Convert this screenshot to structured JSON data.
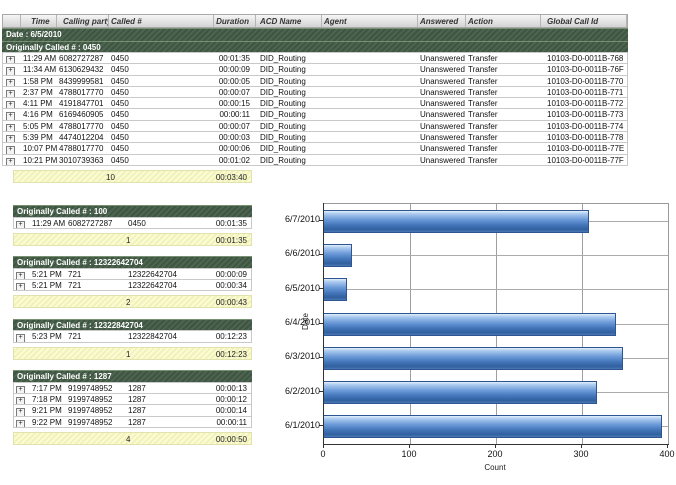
{
  "report": {
    "columns": [
      "Time",
      "Calling party #",
      "Called #",
      "Duration",
      "ACD Name",
      "Agent",
      "Answered",
      "Action",
      "Global Call Id"
    ],
    "date_band": "Date : 6/5/2010",
    "expand_glyph": "+",
    "main_group": {
      "title": "Originally Called # : 0450",
      "rows": [
        {
          "time": "11:29 AM",
          "calling": "6082727287",
          "called": "0450",
          "duration": "00:01:35",
          "acd": "DID_Routing",
          "agent": "",
          "answered": "Unanswered",
          "action": "Transfer",
          "global_id": "10103-D0-0011B-768"
        },
        {
          "time": "11:34 AM",
          "calling": "6130629432",
          "called": "0450",
          "duration": "00:00:09",
          "acd": "DID_Routing",
          "agent": "",
          "answered": "Unanswered",
          "action": "Transfer",
          "global_id": "10103-D0-0011B-76F"
        },
        {
          "time": "1:58 PM",
          "calling": "8439999581",
          "called": "0450",
          "duration": "00:00:05",
          "acd": "DID_Routing",
          "agent": "",
          "answered": "Unanswered",
          "action": "Transfer",
          "global_id": "10103-D0-0011B-770"
        },
        {
          "time": "2:37 PM",
          "calling": "4788017770",
          "called": "0450",
          "duration": "00:00:07",
          "acd": "DID_Routing",
          "agent": "",
          "answered": "Unanswered",
          "action": "Transfer",
          "global_id": "10103-D0-0011B-771"
        },
        {
          "time": "4:11 PM",
          "calling": "4191847701",
          "called": "0450",
          "duration": "00:00:15",
          "acd": "DID_Routing",
          "agent": "",
          "answered": "Unanswered",
          "action": "Transfer",
          "global_id": "10103-D0-0011B-772"
        },
        {
          "time": "4:16 PM",
          "calling": "6169460905",
          "called": "0450",
          "duration": "00:00:11",
          "acd": "DID_Routing",
          "agent": "",
          "answered": "Unanswered",
          "action": "Transfer",
          "global_id": "10103-D0-0011B-773"
        },
        {
          "time": "5:05 PM",
          "calling": "4788017770",
          "called": "0450",
          "duration": "00:00:07",
          "acd": "DID_Routing",
          "agent": "",
          "answered": "Unanswered",
          "action": "Transfer",
          "global_id": "10103-D0-0011B-774"
        },
        {
          "time": "5:39 PM",
          "calling": "4474012204",
          "called": "0450",
          "duration": "00:00:03",
          "acd": "DID_Routing",
          "agent": "",
          "answered": "Unanswered",
          "action": "Transfer",
          "global_id": "10103-D0-0011B-778"
        },
        {
          "time": "10:07 PM",
          "calling": "4788017770",
          "called": "0450",
          "duration": "00:00:06",
          "acd": "DID_Routing",
          "agent": "",
          "answered": "Unanswered",
          "action": "Transfer",
          "global_id": "10103-D0-0011B-77E"
        },
        {
          "time": "10:21 PM",
          "calling": "3010739363",
          "called": "0450",
          "duration": "00:01:02",
          "acd": "DID_Routing",
          "agent": "",
          "answered": "Unanswered",
          "action": "Transfer",
          "global_id": "10103-D0-0011B-77F"
        }
      ],
      "summary": {
        "count": "10",
        "duration": "00:03:40"
      }
    },
    "groups": [
      {
        "title": "Originally Called # : 100",
        "rows": [
          {
            "time": "11:29 AM",
            "calling": "6082727287",
            "called": "0450",
            "duration": "00:01:35"
          }
        ],
        "summary": {
          "count": "1",
          "duration": "00:01:35"
        }
      },
      {
        "title": "Originally Called # : 12322642704",
        "rows": [
          {
            "time": "5:21 PM",
            "calling": "721",
            "called": "12322642704",
            "duration": "00:00:09"
          },
          {
            "time": "5:21 PM",
            "calling": "721",
            "called": "12322642704",
            "duration": "00:00:34"
          }
        ],
        "summary": {
          "count": "2",
          "duration": "00:00:43"
        }
      },
      {
        "title": "Originally Called # : 12322842704",
        "rows": [
          {
            "time": "5:23 PM",
            "calling": "721",
            "called": "12322842704",
            "duration": "00:12:23"
          }
        ],
        "summary": {
          "count": "1",
          "duration": "00:12:23"
        }
      },
      {
        "title": "Originally Called # : 1287",
        "rows": [
          {
            "time": "7:17 PM",
            "calling": "9199748952",
            "called": "1287",
            "duration": "00:00:13"
          },
          {
            "time": "7:18 PM",
            "calling": "9199748952",
            "called": "1287",
            "duration": "00:00:12"
          },
          {
            "time": "9:21 PM",
            "calling": "9199748952",
            "called": "1287",
            "duration": "00:00:14"
          },
          {
            "time": "9:22 PM",
            "calling": "9199748952",
            "called": "1287",
            "duration": "00:00:11"
          }
        ],
        "summary": {
          "count": "4",
          "duration": "00:00:50"
        }
      }
    ]
  },
  "chart_data": {
    "type": "bar",
    "orientation": "horizontal",
    "title": "",
    "categories": [
      "6/7/2010",
      "6/6/2010",
      "6/5/2010",
      "6/4/2010",
      "6/3/2010",
      "6/2/2010",
      "6/1/2010"
    ],
    "values": [
      308,
      32,
      27,
      340,
      348,
      318,
      393
    ],
    "xlabel": "Count",
    "ylabel": "Date",
    "xlim": [
      0,
      400
    ],
    "xticks": [
      0,
      100,
      200,
      300,
      400
    ],
    "grid": true,
    "legend": false,
    "bar_color": "#4f81c4"
  }
}
